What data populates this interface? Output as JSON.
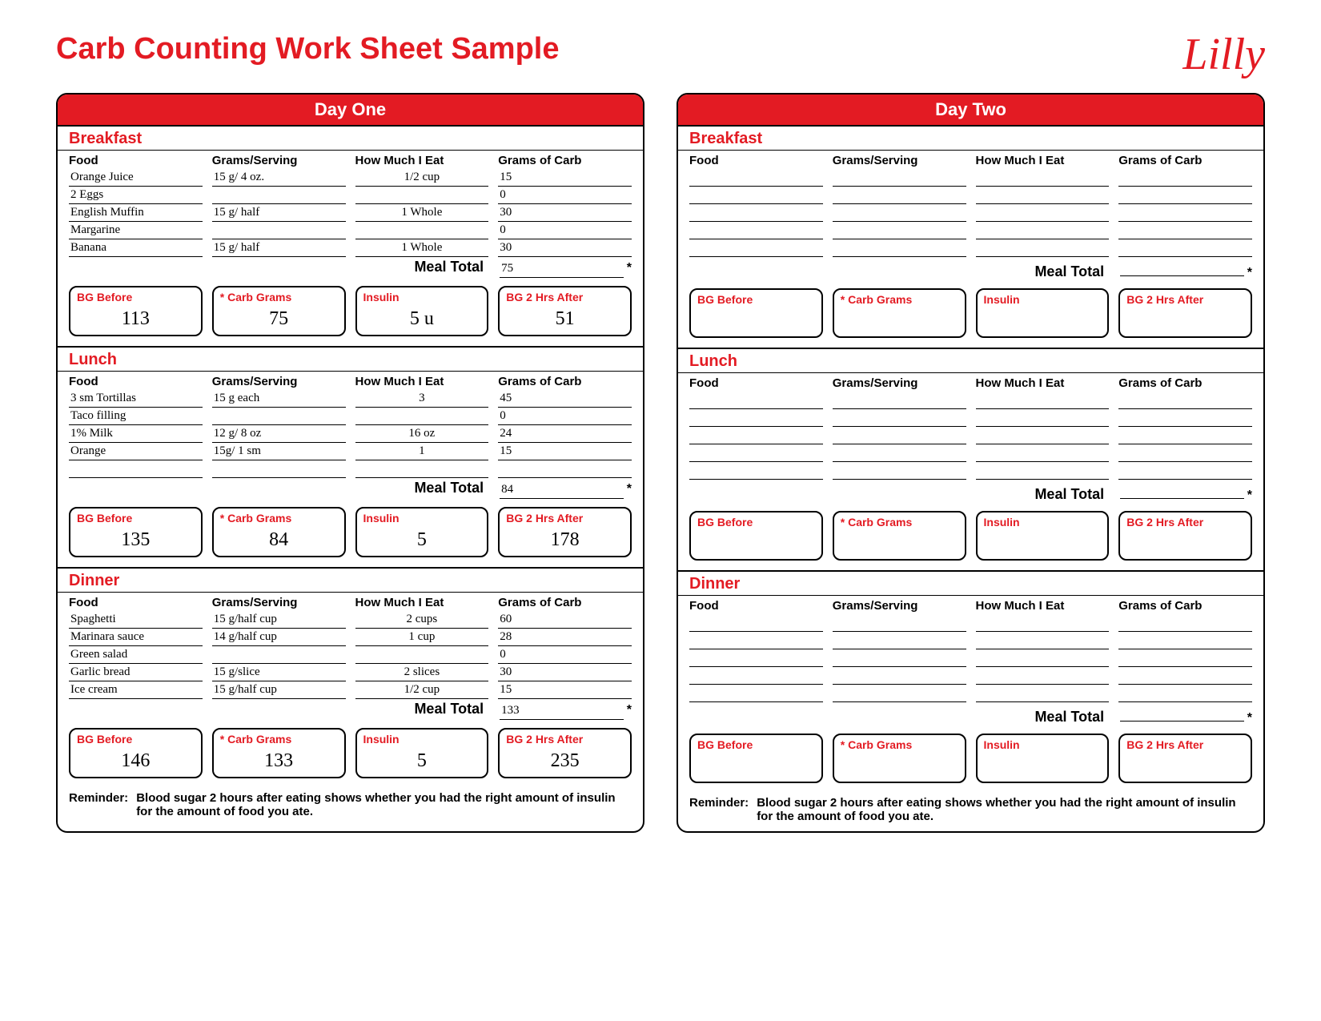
{
  "title": "Carb Counting Work Sheet Sample",
  "logo_text": "Lilly",
  "columns": {
    "food": "Food",
    "grams_serving": "Grams/Serving",
    "how_much": "How Much I Eat",
    "grams_carb": "Grams of Carb"
  },
  "meal_total_label": "Meal Total",
  "stat_labels": {
    "bg_before": "BG Before",
    "carb_grams": "* Carb Grams",
    "insulin": "Insulin",
    "bg_after": "BG 2 Hrs After"
  },
  "reminder_label": "Reminder:",
  "reminder_text": "Blood sugar 2 hours after eating shows whether you had the right amount of insulin for the amount of food you ate.",
  "days": [
    {
      "title": "Day One",
      "meals": [
        {
          "name": "Breakfast",
          "rows": [
            {
              "food": "Orange Juice",
              "gs": "15 g/ 4 oz.",
              "eat": "1/2 cup",
              "carb": "15"
            },
            {
              "food": "2 Eggs",
              "gs": "",
              "eat": "",
              "carb": "0"
            },
            {
              "food": "English Muffin",
              "gs": "15 g/ half",
              "eat": "1 Whole",
              "carb": "30"
            },
            {
              "food": "Margarine",
              "gs": "",
              "eat": "",
              "carb": "0"
            },
            {
              "food": "Banana",
              "gs": "15 g/ half",
              "eat": "1 Whole",
              "carb": "30"
            }
          ],
          "total": "75",
          "stats": {
            "bg_before": "113",
            "carb_grams": "75",
            "insulin": "5 u",
            "bg_after": "51"
          }
        },
        {
          "name": "Lunch",
          "rows": [
            {
              "food": "3 sm Tortillas",
              "gs": "15 g each",
              "eat": "3",
              "carb": "45"
            },
            {
              "food": "Taco filling",
              "gs": "",
              "eat": "",
              "carb": "0"
            },
            {
              "food": "1% Milk",
              "gs": "12 g/ 8 oz",
              "eat": "16 oz",
              "carb": "24"
            },
            {
              "food": "Orange",
              "gs": "15g/ 1 sm",
              "eat": "1",
              "carb": "15"
            },
            {
              "food": "",
              "gs": "",
              "eat": "",
              "carb": ""
            }
          ],
          "total": "84",
          "stats": {
            "bg_before": "135",
            "carb_grams": "84",
            "insulin": "5",
            "bg_after": "178"
          }
        },
        {
          "name": "Dinner",
          "rows": [
            {
              "food": "Spaghetti",
              "gs": "15 g/half cup",
              "eat": "2 cups",
              "carb": "60"
            },
            {
              "food": "Marinara sauce",
              "gs": "14 g/half cup",
              "eat": "1 cup",
              "carb": "28"
            },
            {
              "food": "Green salad",
              "gs": "",
              "eat": "",
              "carb": "0"
            },
            {
              "food": "Garlic bread",
              "gs": "15 g/slice",
              "eat": "2 slices",
              "carb": "30"
            },
            {
              "food": "Ice cream",
              "gs": "15 g/half cup",
              "eat": "1/2 cup",
              "carb": "15"
            }
          ],
          "total": "133",
          "stats": {
            "bg_before": "146",
            "carb_grams": "133",
            "insulin": "5",
            "bg_after": "235"
          }
        }
      ]
    },
    {
      "title": "Day Two",
      "meals": [
        {
          "name": "Breakfast",
          "rows": [
            {
              "food": "",
              "gs": "",
              "eat": "",
              "carb": ""
            },
            {
              "food": "",
              "gs": "",
              "eat": "",
              "carb": ""
            },
            {
              "food": "",
              "gs": "",
              "eat": "",
              "carb": ""
            },
            {
              "food": "",
              "gs": "",
              "eat": "",
              "carb": ""
            },
            {
              "food": "",
              "gs": "",
              "eat": "",
              "carb": ""
            }
          ],
          "total": "",
          "stats": {
            "bg_before": "",
            "carb_grams": "",
            "insulin": "",
            "bg_after": ""
          }
        },
        {
          "name": "Lunch",
          "rows": [
            {
              "food": "",
              "gs": "",
              "eat": "",
              "carb": ""
            },
            {
              "food": "",
              "gs": "",
              "eat": "",
              "carb": ""
            },
            {
              "food": "",
              "gs": "",
              "eat": "",
              "carb": ""
            },
            {
              "food": "",
              "gs": "",
              "eat": "",
              "carb": ""
            },
            {
              "food": "",
              "gs": "",
              "eat": "",
              "carb": ""
            }
          ],
          "total": "",
          "stats": {
            "bg_before": "",
            "carb_grams": "",
            "insulin": "",
            "bg_after": ""
          }
        },
        {
          "name": "Dinner",
          "rows": [
            {
              "food": "",
              "gs": "",
              "eat": "",
              "carb": ""
            },
            {
              "food": "",
              "gs": "",
              "eat": "",
              "carb": ""
            },
            {
              "food": "",
              "gs": "",
              "eat": "",
              "carb": ""
            },
            {
              "food": "",
              "gs": "",
              "eat": "",
              "carb": ""
            },
            {
              "food": "",
              "gs": "",
              "eat": "",
              "carb": ""
            }
          ],
          "total": "",
          "stats": {
            "bg_before": "",
            "carb_grams": "",
            "insulin": "",
            "bg_after": ""
          }
        }
      ]
    }
  ]
}
